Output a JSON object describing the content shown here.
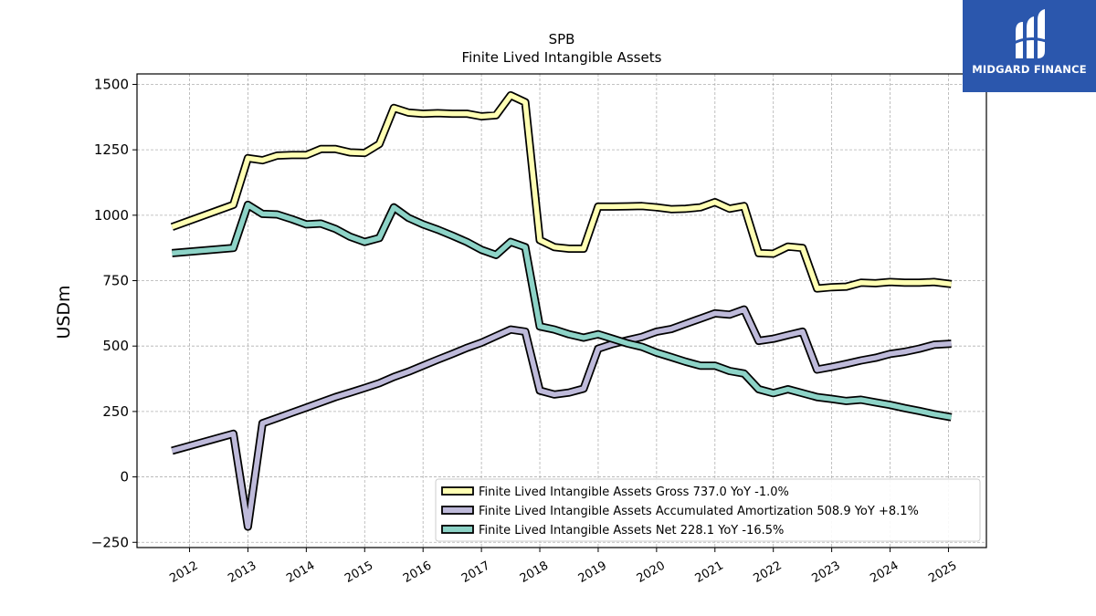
{
  "brand": {
    "name": "MIDGARD FINANCE",
    "bg_color": "#2b57ad"
  },
  "chart_data": {
    "type": "line",
    "title": "SPB",
    "subtitle": "Finite Lived Intangible Assets",
    "xlabel": "",
    "ylabel": "USDm",
    "ylim": [
      -270,
      1540
    ],
    "xlim": [
      2011.1,
      2025.65
    ],
    "yticks": [
      -250,
      0,
      250,
      500,
      750,
      1000,
      1250,
      1500
    ],
    "ytick_labels": [
      "−250",
      "0",
      "250",
      "500",
      "750",
      "1000",
      "1250",
      "1500"
    ],
    "xticks": [
      2012,
      2013,
      2014,
      2015,
      2016,
      2017,
      2018,
      2019,
      2020,
      2021,
      2022,
      2023,
      2024,
      2025
    ],
    "grid": true,
    "legend_position": "lower right",
    "series": [
      {
        "name": "Finite Lived Intangible Assets Gross  737.0 YoY -1.0%",
        "color": "#ffffb3",
        "x": [
          2011.7,
          2012.75,
          2013.0,
          2013.25,
          2013.5,
          2013.75,
          2014.0,
          2014.25,
          2014.5,
          2014.75,
          2015.0,
          2015.25,
          2015.5,
          2015.75,
          2016.0,
          2016.25,
          2016.5,
          2016.75,
          2017.0,
          2017.25,
          2017.5,
          2017.75,
          2018.0,
          2018.25,
          2018.5,
          2018.75,
          2019.0,
          2019.25,
          2019.5,
          2019.75,
          2020.0,
          2020.25,
          2020.5,
          2020.75,
          2021.0,
          2021.25,
          2021.5,
          2021.75,
          2022.0,
          2022.25,
          2022.5,
          2022.75,
          2023.0,
          2023.25,
          2023.5,
          2023.75,
          2024.0,
          2024.25,
          2024.5,
          2024.75,
          2025.05
        ],
        "y": [
          955,
          1040,
          1218,
          1210,
          1228,
          1230,
          1230,
          1253,
          1253,
          1240,
          1238,
          1272,
          1410,
          1392,
          1388,
          1390,
          1388,
          1388,
          1378,
          1382,
          1458,
          1432,
          905,
          878,
          872,
          872,
          1033,
          1033,
          1034,
          1035,
          1030,
          1023,
          1025,
          1030,
          1050,
          1025,
          1035,
          855,
          853,
          880,
          875,
          720,
          725,
          727,
          742,
          740,
          745,
          742,
          742,
          745,
          737
        ]
      },
      {
        "name": "Finite Lived Intangible Assets Accumulated Amortization  508.9 YoY +8.1%",
        "color": "#bebada",
        "x": [
          2011.7,
          2012.75,
          2013.0,
          2013.25,
          2013.5,
          2013.75,
          2014.0,
          2014.25,
          2014.5,
          2014.75,
          2015.0,
          2015.25,
          2015.5,
          2015.75,
          2016.0,
          2016.25,
          2016.5,
          2016.75,
          2017.0,
          2017.25,
          2017.5,
          2017.75,
          2018.0,
          2018.25,
          2018.5,
          2018.75,
          2019.0,
          2019.25,
          2019.5,
          2019.75,
          2020.0,
          2020.25,
          2020.5,
          2020.75,
          2021.0,
          2021.25,
          2021.5,
          2021.75,
          2022.0,
          2022.25,
          2022.5,
          2022.75,
          2023.0,
          2023.25,
          2023.5,
          2023.75,
          2024.0,
          2024.25,
          2024.5,
          2024.75,
          2025.05
        ],
        "y": [
          100,
          165,
          -190,
          205,
          225,
          245,
          265,
          285,
          305,
          322,
          340,
          358,
          382,
          402,
          425,
          448,
          470,
          493,
          513,
          538,
          563,
          555,
          330,
          315,
          322,
          337,
          490,
          508,
          522,
          535,
          555,
          565,
          585,
          605,
          625,
          620,
          640,
          520,
          528,
          542,
          555,
          410,
          420,
          432,
          445,
          455,
          470,
          478,
          490,
          505,
          509
        ]
      },
      {
        "name": "Finite Lived Intangible Assets Net  228.1 YoY -16.5%",
        "color": "#8dd3c7",
        "x": [
          2011.7,
          2012.75,
          2013.0,
          2013.25,
          2013.5,
          2013.75,
          2014.0,
          2014.25,
          2014.5,
          2014.75,
          2015.0,
          2015.25,
          2015.5,
          2015.75,
          2016.0,
          2016.25,
          2016.5,
          2016.75,
          2017.0,
          2017.25,
          2017.5,
          2017.75,
          2018.0,
          2018.25,
          2018.5,
          2018.75,
          2019.0,
          2019.25,
          2019.5,
          2019.75,
          2020.0,
          2020.25,
          2020.5,
          2020.75,
          2021.0,
          2021.25,
          2021.5,
          2021.75,
          2022.0,
          2022.25,
          2022.5,
          2022.75,
          2023.0,
          2023.25,
          2023.5,
          2023.75,
          2024.0,
          2024.25,
          2024.5,
          2024.75,
          2025.05
        ],
        "y": [
          855,
          875,
          1040,
          1005,
          1003,
          985,
          965,
          968,
          948,
          918,
          898,
          913,
          1030,
          990,
          965,
          945,
          922,
          898,
          868,
          848,
          898,
          878,
          575,
          563,
          545,
          532,
          545,
          528,
          510,
          497,
          475,
          458,
          440,
          425,
          425,
          405,
          395,
          335,
          320,
          335,
          320,
          305,
          298,
          290,
          295,
          285,
          275,
          263,
          252,
          240,
          228
        ]
      }
    ]
  }
}
